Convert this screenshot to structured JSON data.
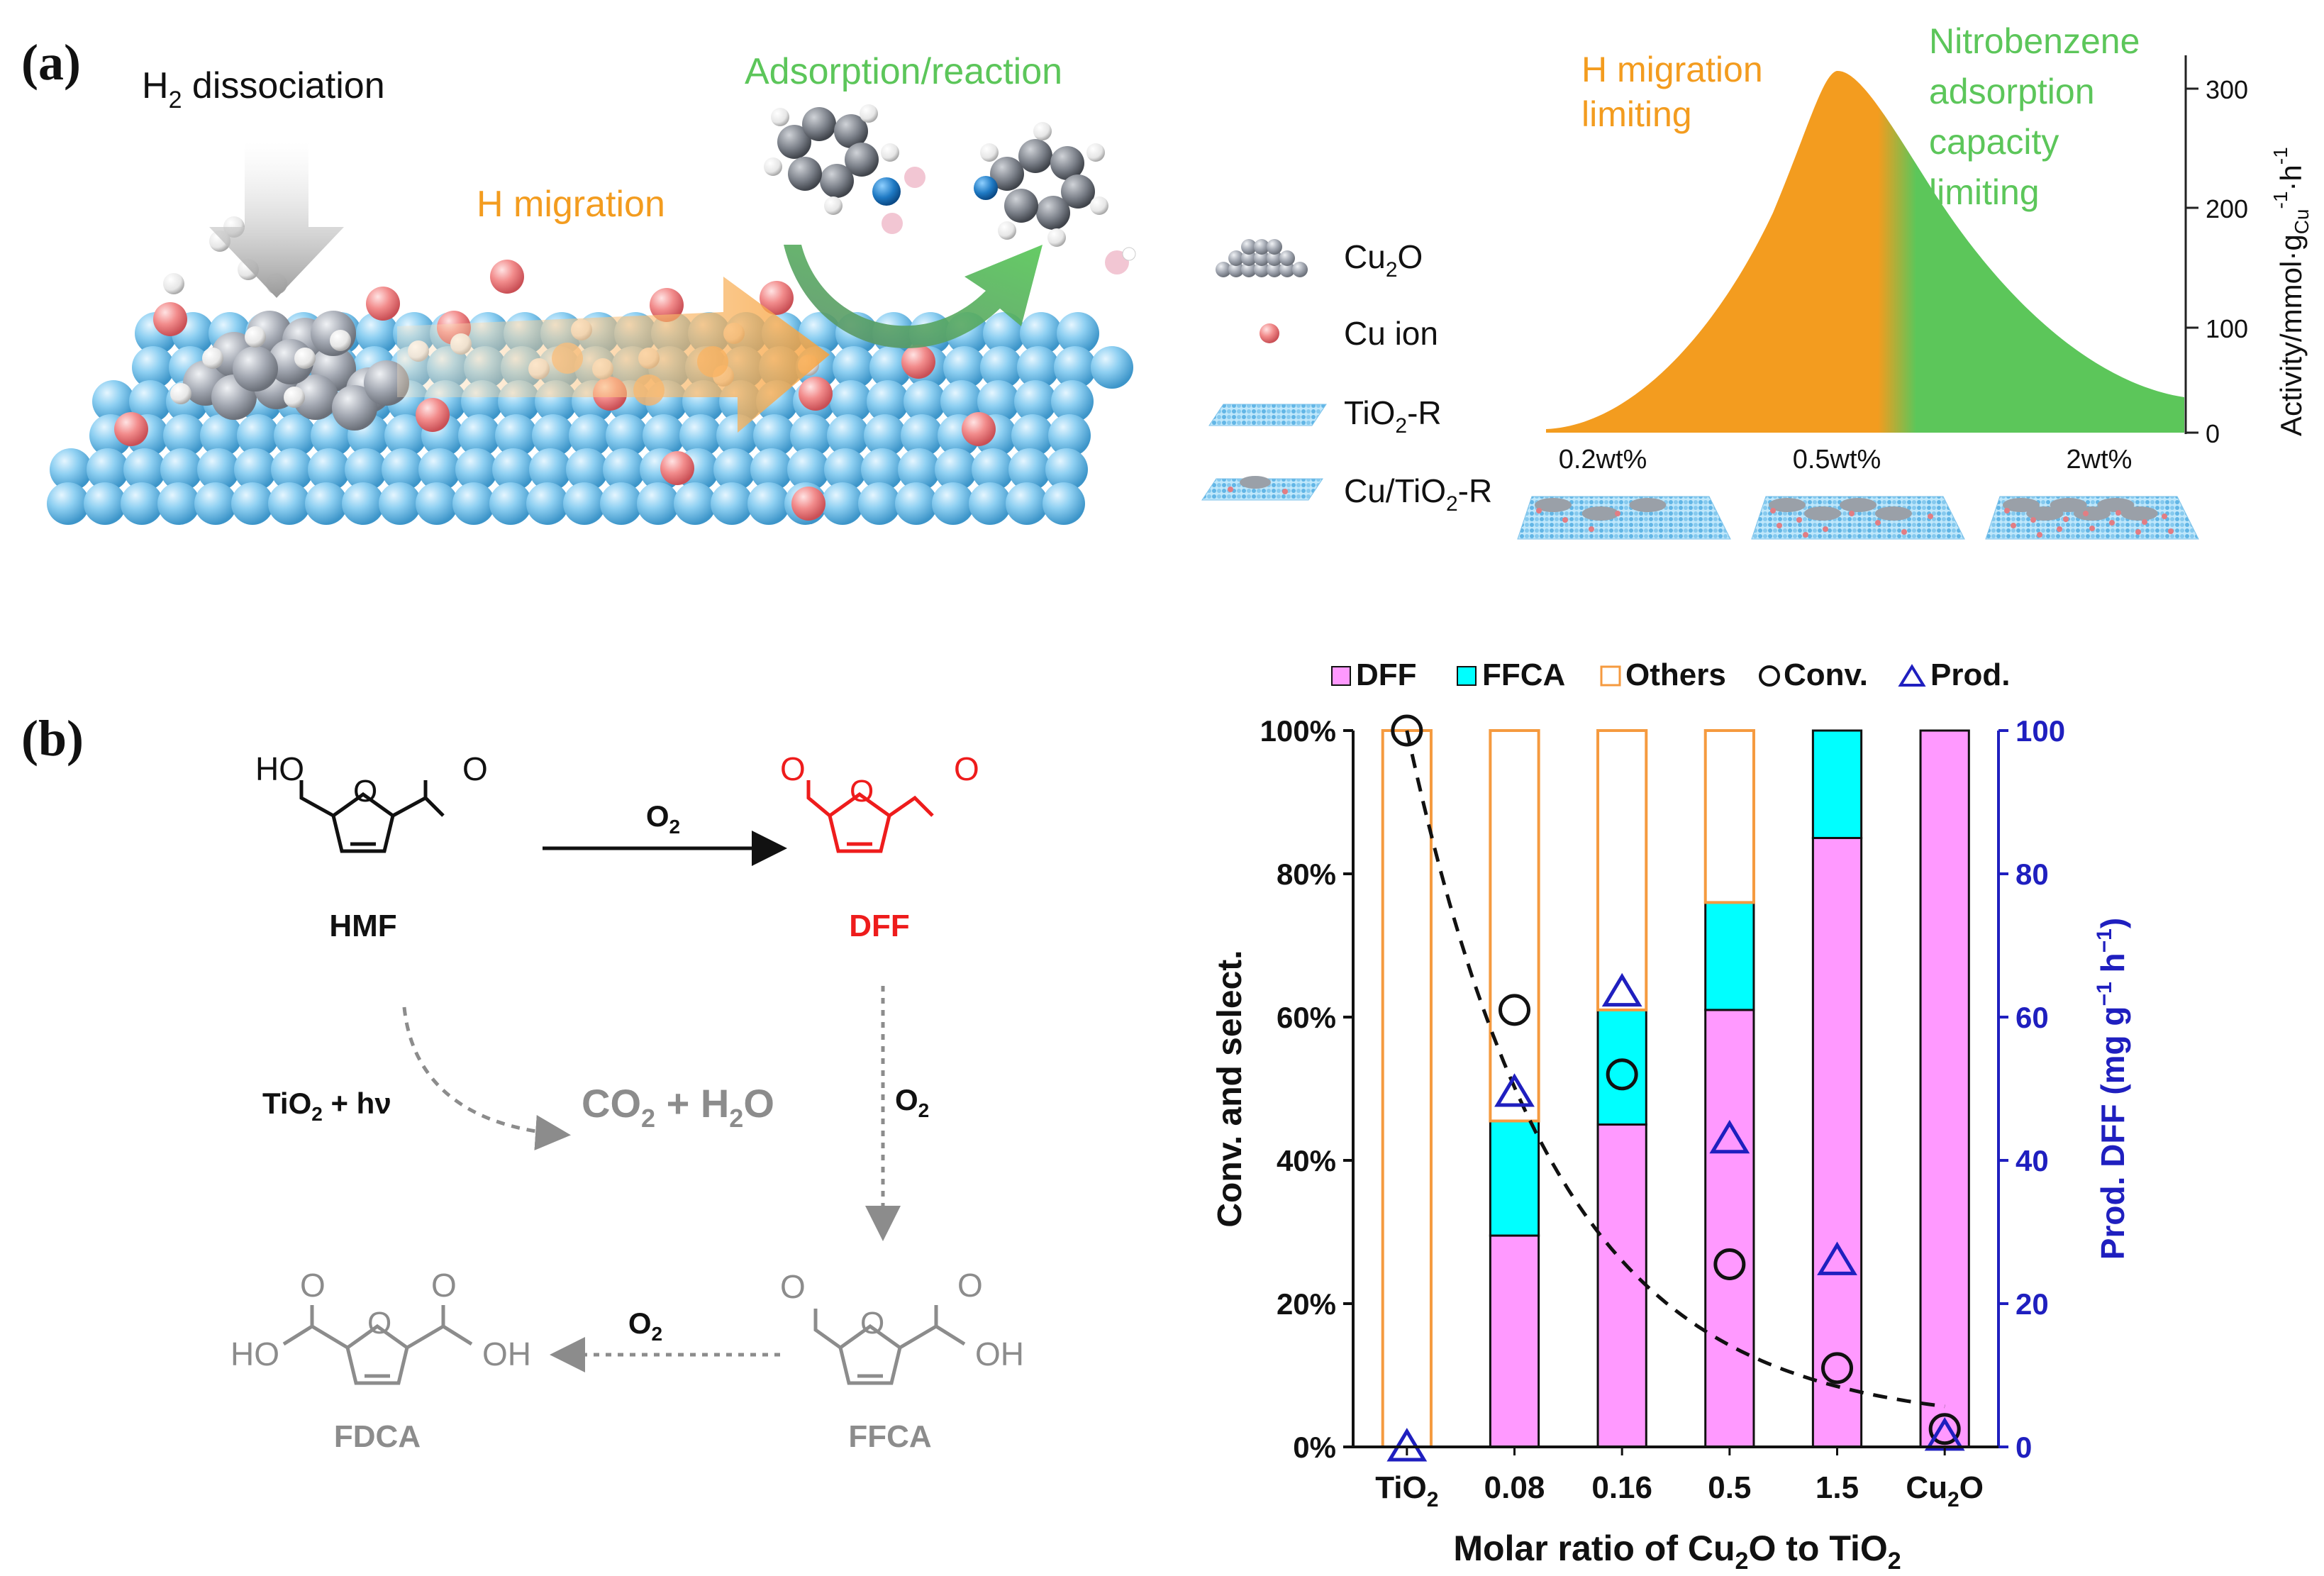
{
  "panel_a": {
    "label": "(a)",
    "titles": {
      "h2_dissociation": "H",
      "h2_dissociation_sub": "2",
      "h2_dissociation_rest": " dissociation",
      "h_migration": "H migration",
      "adsorption": "Adsorption/reaction"
    },
    "legend": [
      {
        "main": "Cu",
        "sub": "2",
        "rest": "O",
        "icon": "cu2o-cluster-icon"
      },
      {
        "main": "Cu ion",
        "sub": "",
        "rest": "",
        "icon": "cu-ion-icon"
      },
      {
        "main": "TiO",
        "sub": "2",
        "rest": "-R",
        "icon": "tio2-r-slab-icon"
      },
      {
        "main": "Cu/TiO",
        "sub": "2",
        "rest": "-R",
        "icon": "cu-tio2-r-slab-icon"
      }
    ],
    "curve": {
      "left_note_line1": "H migration",
      "left_note_line2": "limiting",
      "right_note": [
        "Nitrobenzene",
        "adsorption",
        "capacity",
        "limiting"
      ],
      "x_labels": [
        "0.2wt%",
        "0.5wt%",
        "2wt%"
      ],
      "y_ticks": [
        "0",
        "100",
        "200",
        "300"
      ],
      "ylabel_main": "Activity/mmol·g",
      "ylabel_sub": "Cu",
      "ylabel_sup": "-1",
      "ylabel_tail": "·h",
      "ylabel_tail_sup": "-1",
      "colors": {
        "orange": "#f39c1f",
        "green": "#5cc65a"
      }
    }
  },
  "panel_b": {
    "label": "(b)",
    "scheme": {
      "hmf": "HMF",
      "dff": "DFF",
      "ffca": "FFCA",
      "fdca": "FDCA",
      "ho": "HO",
      "o": "O",
      "oh": "OH",
      "o2": "O",
      "o2_sub": "2",
      "tio2_hv": "TiO",
      "tio2_hv_sub": "2",
      "tio2_hv_rest": " + hν",
      "co2": "CO",
      "co2_sub": "2",
      "co2_rest": " + H",
      "h2o_sub": "2",
      "h2o_rest": "O",
      "colors": {
        "dff": "#ee1c1c",
        "grey": "#8c8c8c",
        "black": "#111111"
      }
    }
  },
  "chart_data": {
    "type": "bar",
    "title": "",
    "categories": [
      "TiO2",
      "0.08",
      "0.16",
      "0.5",
      "1.5",
      "Cu2O"
    ],
    "category_labels": [
      {
        "main": "TiO",
        "sub": "2",
        "rest": ""
      },
      {
        "main": "0.08",
        "sub": "",
        "rest": ""
      },
      {
        "main": "0.16",
        "sub": "",
        "rest": ""
      },
      {
        "main": "0.5",
        "sub": "",
        "rest": ""
      },
      {
        "main": "1.5",
        "sub": "",
        "rest": ""
      },
      {
        "main": "Cu",
        "sub": "2",
        "rest": "O"
      }
    ],
    "series": [
      {
        "name": "DFF",
        "values": [
          0,
          29.5,
          45,
          61,
          85,
          100
        ],
        "color": "#ff99ff"
      },
      {
        "name": "FFCA",
        "values": [
          0,
          16,
          16,
          15,
          15,
          0
        ],
        "color": "#00ffff"
      },
      {
        "name": "Others",
        "values": [
          100,
          54.5,
          39,
          24,
          0,
          0
        ],
        "color": "#ffffff",
        "edge": "#f59a3f"
      }
    ],
    "conversion": {
      "name": "Conv.",
      "values": [
        100,
        61,
        52,
        25.5,
        11,
        2.5
      ],
      "marker": "circle"
    },
    "productivity": {
      "name": "Prod.",
      "values": [
        0,
        49.5,
        63.5,
        43,
        26,
        1.5
      ],
      "marker": "triangle",
      "color": "#1f1fbf"
    },
    "trend": "dashed exponential decay through conversion points",
    "legend": [
      "DFF",
      "FFCA",
      "Others",
      "Conv.",
      "Prod."
    ],
    "xlabel": {
      "main": "Molar ratio of Cu",
      "sub": "2",
      "rest": "O to TiO",
      "sub2": "2"
    },
    "ylabel_left": "Conv. and select.",
    "ylabel_right": {
      "main": "Prod. DFF (mg g",
      "sup1": "−1",
      "mid": " h",
      "sup2": "−1",
      "end": ")"
    },
    "y_left_ticks": [
      "0%",
      "20%",
      "40%",
      "60%",
      "80%",
      "100%"
    ],
    "y_right_ticks": [
      "0",
      "20",
      "40",
      "60",
      "80",
      "100"
    ],
    "ylim": [
      0,
      100
    ]
  }
}
